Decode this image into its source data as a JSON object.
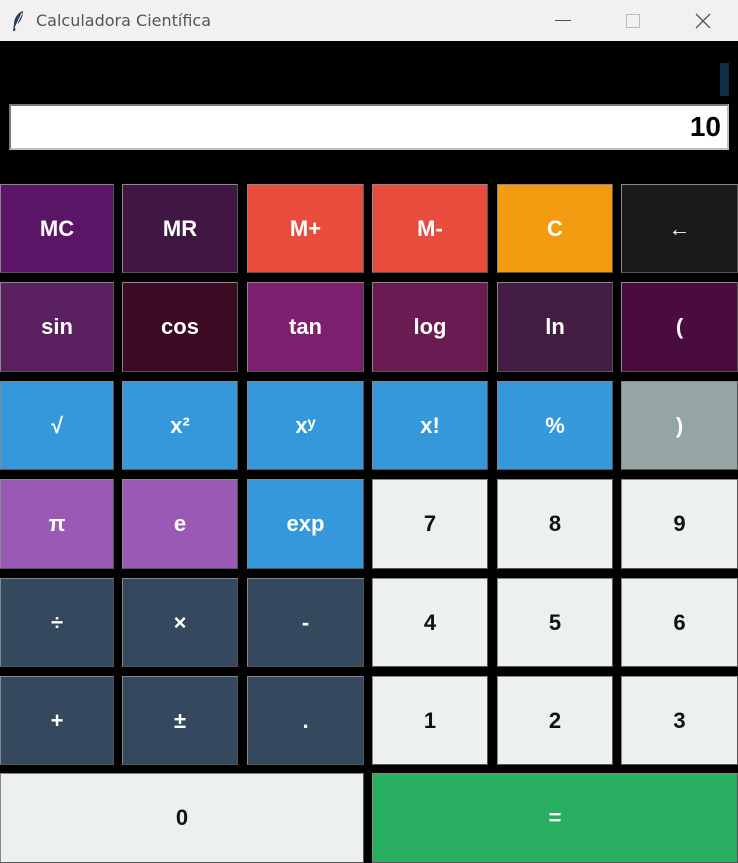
{
  "window": {
    "title": "Calculadora Científica",
    "controls": {
      "minimize": "—",
      "maximize": "☐",
      "close": "✕"
    }
  },
  "display": {
    "value": "10"
  },
  "colors": {
    "purple_dark": "#5b1566",
    "plum": "#3f1742",
    "red": "#e74c3c",
    "orange": "#f39c12",
    "near_black": "#1a1a1a",
    "blue": "#3498db",
    "grey": "#95a5a6",
    "violet": "#9b59b6",
    "slate": "#34495e",
    "light": "#ecf0f1",
    "green": "#27ae60"
  },
  "buttons": {
    "mc": "MC",
    "mr": "MR",
    "m_plus": "M+",
    "m_minus": "M-",
    "clear": "C",
    "backspace": "←",
    "sin": "sin",
    "cos": "cos",
    "tan": "tan",
    "log": "log",
    "ln": "ln",
    "lparen": "(",
    "sqrt": "√",
    "square": "x²",
    "power": "xʸ",
    "factorial": "x!",
    "percent": "%",
    "rparen": ")",
    "pi": "π",
    "e": "e",
    "exp": "exp",
    "seven": "7",
    "eight": "8",
    "nine": "9",
    "divide": "÷",
    "multiply": "×",
    "subtract": "-",
    "four": "4",
    "five": "5",
    "six": "6",
    "add": "+",
    "plus_minus": "±",
    "decimal": ".",
    "one": "1",
    "two": "2",
    "three": "3",
    "zero": "0",
    "equals": "="
  }
}
